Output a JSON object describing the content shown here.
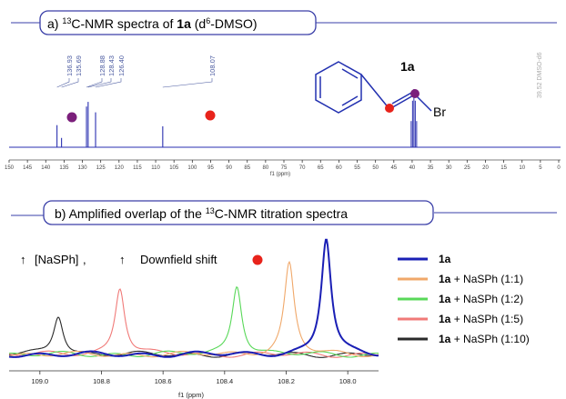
{
  "panel_a": {
    "title_pre": "a) ",
    "title_sup": "13",
    "title_mid": "C-NMR spectra of ",
    "title_bold": "1a",
    "title_post_open": " (d",
    "title_sup2": "6",
    "title_post": "-DMSO)",
    "xaxis_label": "f1 (ppm)",
    "compound_label": "1a",
    "br_label": "Br",
    "solvent_label": "39.52 DMSO-d6"
  },
  "panel_b": {
    "title_pre": "b) Amplified overlap of the ",
    "title_sup": "13",
    "title_post": "C-NMR titration spectra",
    "xaxis_label": "f1 (ppm)",
    "arrow_glyph": "↑",
    "annotation_reagent": "[NaSPh]",
    "annotation_sep": " ,",
    "annotation_shift": "Downfield shift"
  },
  "colors": {
    "frame": "#3a3fa8",
    "purple_marker": "#7b1f7b",
    "red_marker": "#e8231b",
    "spectrum_a": "#2a2fb0"
  },
  "chart_data": [
    {
      "type": "line",
      "xlabel": "f1 (ppm)",
      "xlim": [
        150,
        0
      ],
      "xticks": [
        150,
        145,
        140,
        135,
        130,
        125,
        120,
        115,
        110,
        105,
        100,
        95,
        90,
        85,
        80,
        75,
        70,
        65,
        60,
        55,
        50,
        45,
        40,
        35,
        30,
        25,
        20,
        15,
        10,
        5,
        0
      ],
      "peaks": [
        {
          "ppm": 136.93,
          "label": "136.93",
          "height": 0.38
        },
        {
          "ppm": 135.69,
          "label": "135.69",
          "height": 0.16
        },
        {
          "ppm": 128.88,
          "label": "128.88",
          "height": 0.7
        },
        {
          "ppm": 128.43,
          "label": "128.43",
          "height": 0.78
        },
        {
          "ppm": 126.4,
          "label": "126.40",
          "height": 0.6
        },
        {
          "ppm": 108.07,
          "label": "108.07",
          "height": 0.36
        },
        {
          "ppm": 39.52,
          "label": "39.52 DMSO-d6",
          "height": 1.0
        }
      ]
    },
    {
      "type": "line",
      "xlabel": "f1 (ppm)",
      "xlim": [
        109.1,
        107.9
      ],
      "xticks": [
        109.0,
        108.8,
        108.6,
        108.4,
        108.2,
        108.0
      ],
      "series": [
        {
          "name_bold": "1a",
          "name_rest": "",
          "color": "#1a1fb5",
          "peak_ppm": 108.07,
          "height": 1.0
        },
        {
          "name_bold": "1a",
          "name_rest": " + NaSPh (1:1)",
          "color": "#f0a86a",
          "peak_ppm": 108.19,
          "height": 0.78
        },
        {
          "name_bold": "1a",
          "name_rest": " + NaSPh (1:2)",
          "color": "#58d858",
          "peak_ppm": 108.36,
          "height": 0.6
        },
        {
          "name_bold": "1a",
          "name_rest": " + NaSPh (1:5)",
          "color": "#f07a78",
          "peak_ppm": 108.74,
          "height": 0.58
        },
        {
          "name_bold": "1a",
          "name_rest": " + NaSPh (1:10)",
          "color": "#2a2a2a",
          "peak_ppm": 108.94,
          "height": 0.34
        }
      ]
    }
  ]
}
